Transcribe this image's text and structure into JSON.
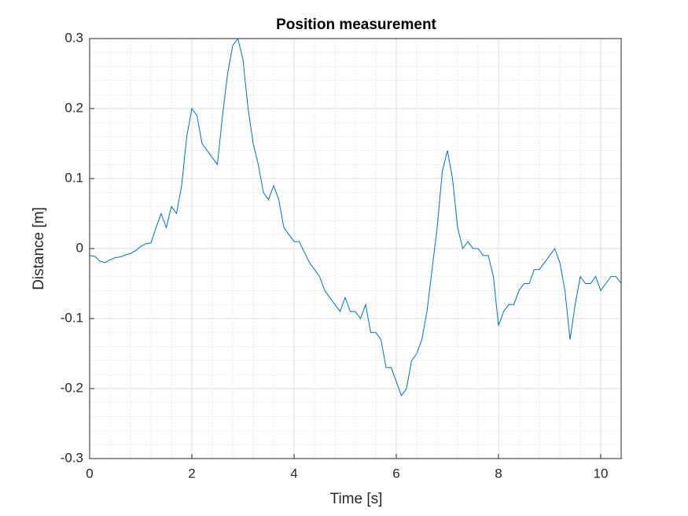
{
  "chart_data": {
    "type": "line",
    "title": "Position measurement",
    "x_label": "Time [s]",
    "y_label": "Distance [m]",
    "x": [
      0,
      0.1,
      0.2,
      0.3,
      0.4,
      0.5,
      0.6,
      0.7,
      0.8,
      0.9,
      1,
      1.1,
      1.2,
      1.3,
      1.4,
      1.5,
      1.6,
      1.7,
      1.8,
      1.9,
      2,
      2.1,
      2.2,
      2.3,
      2.4,
      2.5,
      2.6,
      2.7,
      2.8,
      2.9,
      3,
      3.1,
      3.2,
      3.3,
      3.4,
      3.5,
      3.6,
      3.7,
      3.8,
      3.9,
      4,
      4.1,
      4.2,
      4.3,
      4.4,
      4.5,
      4.6,
      4.7,
      4.8,
      4.9,
      5,
      5.1,
      5.2,
      5.3,
      5.4,
      5.5,
      5.6,
      5.7,
      5.8,
      5.9,
      6,
      6.1,
      6.2,
      6.3,
      6.4,
      6.5,
      6.6,
      6.7,
      6.8,
      6.9,
      7,
      7.1,
      7.2,
      7.3,
      7.4,
      7.5,
      7.6,
      7.7,
      7.8,
      7.9,
      8,
      8.1,
      8.2,
      8.3,
      8.4,
      8.5,
      8.6,
      8.7,
      8.8,
      8.9,
      9,
      9.1,
      9.2,
      9.3,
      9.4,
      9.5,
      9.6,
      9.7,
      9.8,
      9.9,
      10,
      10.1,
      10.2,
      10.3,
      10.4
    ],
    "series": [
      {
        "color": "#0072bd",
        "values": [
          -0.01,
          -0.011,
          -0.018,
          -0.02,
          -0.016,
          -0.013,
          -0.012,
          -0.009,
          -0.007,
          -0.003,
          0.003,
          0.007,
          0.008,
          0.03,
          0.05,
          0.03,
          0.06,
          0.05,
          0.09,
          0.16,
          0.2,
          0.19,
          0.15,
          0.14,
          0.13,
          0.12,
          0.19,
          0.25,
          0.29,
          0.3,
          0.27,
          0.2,
          0.15,
          0.12,
          0.08,
          0.07,
          0.09,
          0.07,
          0.03,
          0.02,
          0.01,
          0.01,
          -0.005,
          -0.02,
          -0.03,
          -0.04,
          -0.06,
          -0.07,
          -0.08,
          -0.09,
          -0.07,
          -0.09,
          -0.09,
          -0.1,
          -0.08,
          -0.12,
          -0.12,
          -0.13,
          -0.17,
          -0.17,
          -0.19,
          -0.21,
          -0.2,
          -0.16,
          -0.15,
          -0.13,
          -0.09,
          -0.03,
          0.03,
          0.11,
          0.14,
          0.1,
          0.03,
          0,
          0.01,
          0,
          0,
          -0.01,
          -0.01,
          -0.04,
          -0.11,
          -0.09,
          -0.08,
          -0.08,
          -0.06,
          -0.05,
          -0.05,
          -0.03,
          -0.03,
          -0.02,
          -0.01,
          0,
          -0.02,
          -0.06,
          -0.13,
          -0.08,
          -0.04,
          -0.05,
          -0.05,
          -0.04,
          -0.06,
          -0.05,
          -0.04,
          -0.04,
          -0.05
        ]
      }
    ],
    "xlim": [
      0,
      10.4
    ],
    "ylim": [
      -0.3,
      0.3
    ],
    "xticks": [
      0,
      2,
      4,
      6,
      8,
      10
    ],
    "yticks": [
      -0.3,
      -0.2,
      -0.1,
      0,
      0.1,
      0.2,
      0.3
    ],
    "grid": true,
    "minor_grid": true,
    "x_minor_step": 0.4,
    "y_minor_step": 0.02
  }
}
